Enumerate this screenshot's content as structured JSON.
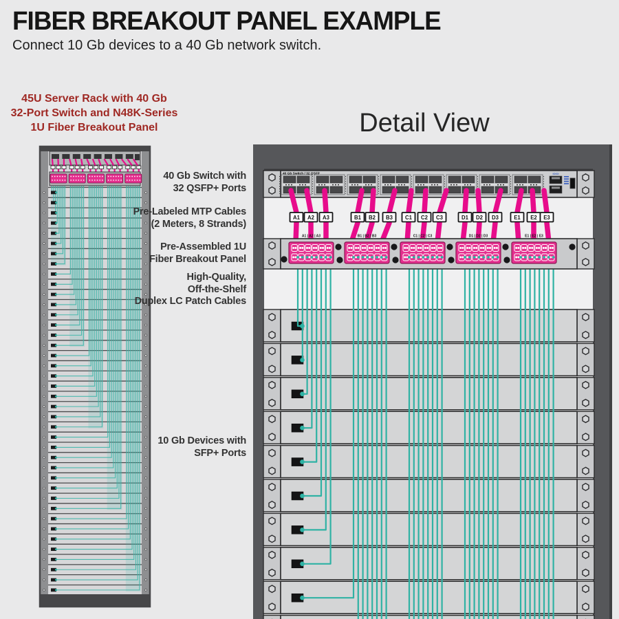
{
  "header": {
    "title": "FIBER BREAKOUT PANEL EXAMPLE",
    "subtitle": "Connect 10 Gb devices to a 40 Gb network switch."
  },
  "left_rack": {
    "caption_lines": [
      "45U Server Rack with 40 Gb",
      "32-Port Switch and N48K-Series",
      "1U Fiber Breakout Panel"
    ],
    "server_rows": 40,
    "cassette_groups": 5,
    "cables_per_group": 8
  },
  "detail_view": {
    "heading": "Detail View",
    "switch_title": "40 Gb Switch / 32 QSFP",
    "mgmt_label": "IOIOI",
    "qsfp_groups": 8,
    "mtp_labels": [
      "A1",
      "A2",
      "A3",
      "B1",
      "B2",
      "B3",
      "C1",
      "C2",
      "C3",
      "D1",
      "D2",
      "D3",
      "E1",
      "E2",
      "E3"
    ],
    "cassette_labels": [
      "A1 | A2 | A3",
      "B1 | B2 | B3",
      "C1 | C2 | C3",
      "D1 | D2 | D3",
      "E1 | E2 | E3"
    ],
    "server_rows_visible": 10
  },
  "annotations": [
    {
      "lines": [
        "40 Gb Switch with",
        "32 QSFP+ Ports"
      ]
    },
    {
      "lines": [
        "Pre-Labeled MTP Cables",
        "(2 Meters, 8 Strands)"
      ]
    },
    {
      "lines": [
        "Pre-Assembled 1U",
        "Fiber Breakout Panel"
      ]
    },
    {
      "lines": [
        "High-Quality,",
        "Off-the-Shelf",
        "Duplex LC Patch Cables"
      ]
    },
    {
      "lines": [
        "10 Gb Devices with",
        "SFP+ Ports"
      ]
    }
  ],
  "colors": {
    "accent_red": "#9f2823",
    "magenta": "#e70c8b",
    "cassette_pink": "#e5308f",
    "teal": "#2fb2a4",
    "teal_band": "rgba(63,182,170,0.16)",
    "rail": "#56575a",
    "frame": "#474749",
    "rail_light": "#8e8f91",
    "inner_bg": "#f0f0f1",
    "inner_bg_left": "#d7d7d9",
    "unit_face": "#cdced0",
    "server_face": "#d4d5d6",
    "plate": "#c9cacc",
    "port_dark": "#48484a",
    "blue": "#3a5fbe"
  }
}
